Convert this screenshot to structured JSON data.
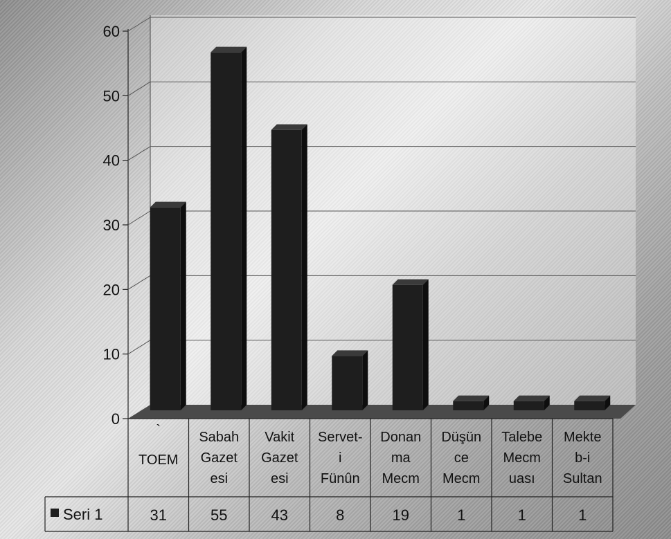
{
  "chart_data": {
    "type": "bar",
    "categories": [
      [
        "`",
        "TOEM"
      ],
      [
        "Sabah",
        "Gazet",
        "esi"
      ],
      [
        "Vakit",
        "Gazet",
        "esi"
      ],
      [
        "Servet-",
        "i",
        "Fünûn"
      ],
      [
        "Donan",
        "ma",
        "Mecm"
      ],
      [
        "Düşün",
        "ce",
        "Mecm"
      ],
      [
        "Talebe",
        "Mecm",
        "uası"
      ],
      [
        "Mekte",
        "b-i",
        "Sultan"
      ]
    ],
    "series": [
      {
        "name": "Seri 1",
        "values": [
          31,
          55,
          43,
          8,
          19,
          1,
          1,
          1
        ]
      }
    ],
    "ylim": [
      0,
      60
    ],
    "yticks": [
      0,
      10,
      20,
      30,
      40,
      50,
      60
    ],
    "grid": true,
    "legend": "data-table-left",
    "data_table": true,
    "colors": {
      "bar": "#1e1e1e",
      "grid": "#555555",
      "floor": "#4a4a4a"
    }
  }
}
